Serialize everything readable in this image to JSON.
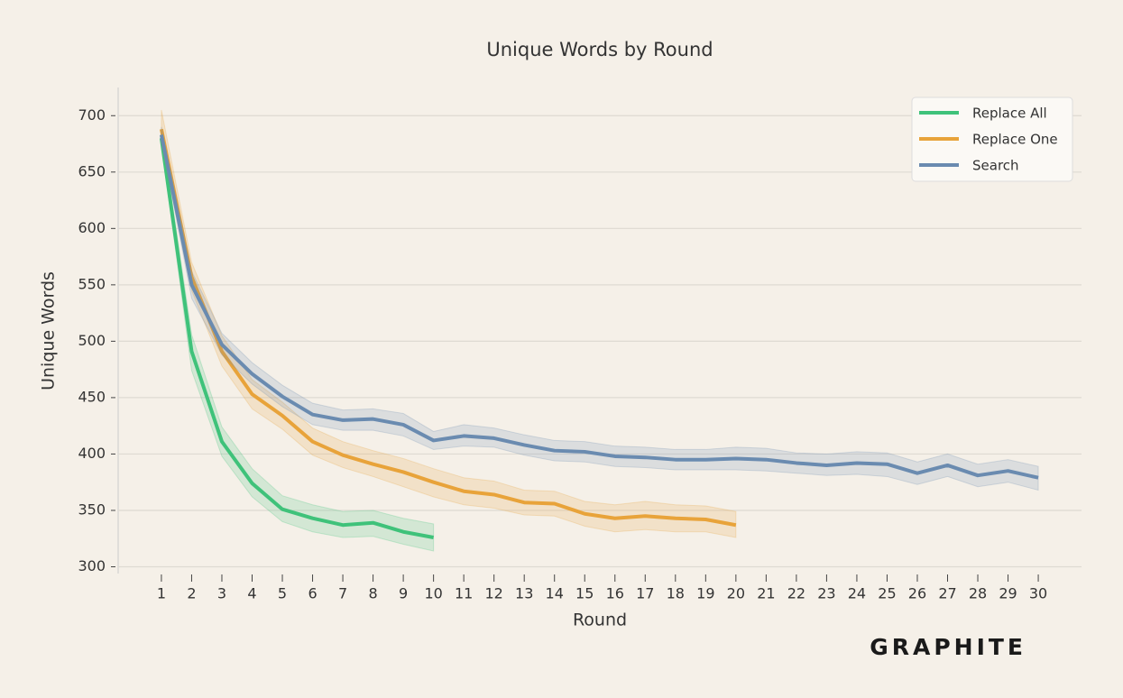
{
  "chart_data": {
    "type": "line",
    "title": "Unique Words by Round",
    "x_label": "Round",
    "y_label": "Unique Words",
    "watermark": "GRAPHITE",
    "xlim": [
      -0.43,
      31.43
    ],
    "ylim": [
      294,
      725
    ],
    "xticks": [
      1,
      2,
      3,
      4,
      5,
      6,
      7,
      8,
      9,
      10,
      11,
      12,
      13,
      14,
      15,
      16,
      17,
      18,
      19,
      20,
      21,
      22,
      23,
      24,
      25,
      26,
      27,
      28,
      29,
      30
    ],
    "yticks": [
      300,
      350,
      400,
      450,
      500,
      550,
      600,
      650,
      700
    ],
    "grid": true,
    "legend": "upper right",
    "series": [
      {
        "name": "Replace All",
        "color": "#3fc27a",
        "x": [
          1,
          2,
          3,
          4,
          5,
          6,
          7,
          8,
          9,
          10
        ],
        "values": [
          680,
          491,
          411,
          374,
          351,
          343,
          337,
          339,
          331,
          326
        ],
        "lower": [
          675,
          474,
          398,
          362,
          340,
          331,
          326,
          327,
          320,
          314
        ],
        "upper": [
          688,
          506,
          424,
          387,
          363,
          355,
          349,
          350,
          343,
          338
        ]
      },
      {
        "name": "Replace One",
        "color": "#e8a33a",
        "x": [
          1,
          2,
          3,
          4,
          5,
          6,
          7,
          8,
          9,
          10,
          11,
          12,
          13,
          14,
          15,
          16,
          17,
          18,
          19,
          20
        ],
        "values": [
          688,
          557,
          491,
          453,
          434,
          411,
          399,
          391,
          384,
          375,
          367,
          364,
          357,
          356,
          347,
          343,
          345,
          343,
          342,
          337
        ],
        "lower": [
          676,
          545,
          478,
          440,
          422,
          399,
          388,
          380,
          371,
          362,
          355,
          352,
          346,
          345,
          336,
          331,
          333,
          331,
          331,
          326
        ],
        "upper": [
          705,
          570,
          505,
          466,
          446,
          423,
          411,
          403,
          396,
          387,
          379,
          376,
          368,
          367,
          358,
          355,
          358,
          355,
          354,
          349
        ]
      },
      {
        "name": "Search",
        "color": "#6a8bb0",
        "x": [
          1,
          2,
          3,
          4,
          5,
          6,
          7,
          8,
          9,
          10,
          11,
          12,
          13,
          14,
          15,
          16,
          17,
          18,
          19,
          20,
          21,
          22,
          23,
          24,
          25,
          26,
          27,
          28,
          29,
          30
        ],
        "values": [
          683,
          550,
          497,
          471,
          451,
          435,
          430,
          431,
          426,
          412,
          416,
          414,
          408,
          403,
          402,
          398,
          397,
          395,
          395,
          396,
          395,
          392,
          390,
          392,
          391,
          383,
          390,
          381,
          385,
          379
        ],
        "lower": [
          678,
          538,
          488,
          462,
          442,
          426,
          421,
          421,
          416,
          404,
          407,
          406,
          399,
          394,
          393,
          389,
          388,
          386,
          386,
          386,
          385,
          383,
          381,
          382,
          380,
          373,
          380,
          371,
          375,
          368
        ],
        "upper": [
          690,
          562,
          507,
          481,
          461,
          445,
          439,
          440,
          436,
          420,
          426,
          423,
          417,
          412,
          411,
          407,
          406,
          404,
          404,
          406,
          405,
          401,
          400,
          402,
          401,
          393,
          400,
          391,
          395,
          389
        ]
      }
    ]
  }
}
